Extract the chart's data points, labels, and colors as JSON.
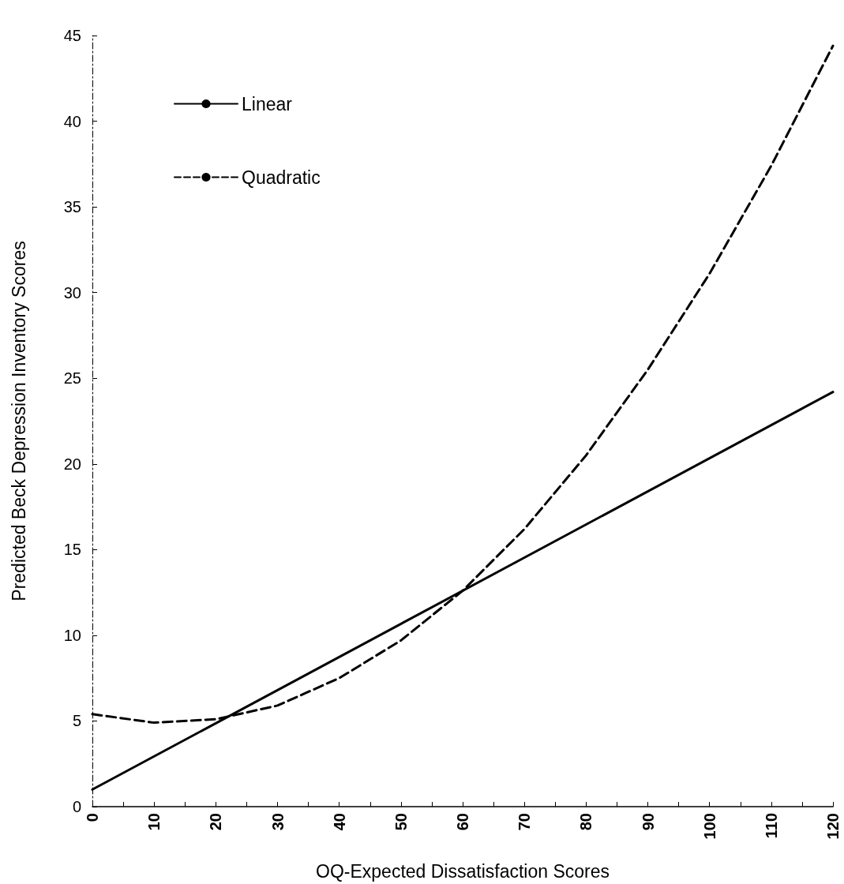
{
  "chart_data": {
    "type": "line",
    "xlabel": "OQ-Expected Dissatisfaction Scores",
    "ylabel": "Predicted Beck Depression Inventory Scores",
    "series": [
      {
        "name": "Linear",
        "color": "#000000",
        "line_style": "solid",
        "x": [
          0,
          120
        ],
        "values": [
          1.0,
          24.2
        ]
      },
      {
        "name": "Quadratic",
        "color": "#000000",
        "line_style": "dashed",
        "x": [
          0,
          10,
          20,
          30,
          40,
          50,
          60,
          70,
          80,
          90,
          100,
          110,
          120
        ],
        "values": [
          5.4,
          4.9,
          5.1,
          5.9,
          7.5,
          9.7,
          12.6,
          16.2,
          20.5,
          25.5,
          31.1,
          37.4,
          44.4
        ]
      }
    ],
    "xlim": [
      0,
      120
    ],
    "xticks": [
      0,
      10,
      20,
      30,
      40,
      50,
      60,
      70,
      80,
      90,
      100,
      110,
      120
    ],
    "ylim": [
      0,
      45
    ],
    "yticks": [
      0,
      5,
      10,
      15,
      20,
      25,
      30,
      35,
      40,
      45
    ],
    "grid": false,
    "legend": "top left",
    "marker": "none"
  }
}
